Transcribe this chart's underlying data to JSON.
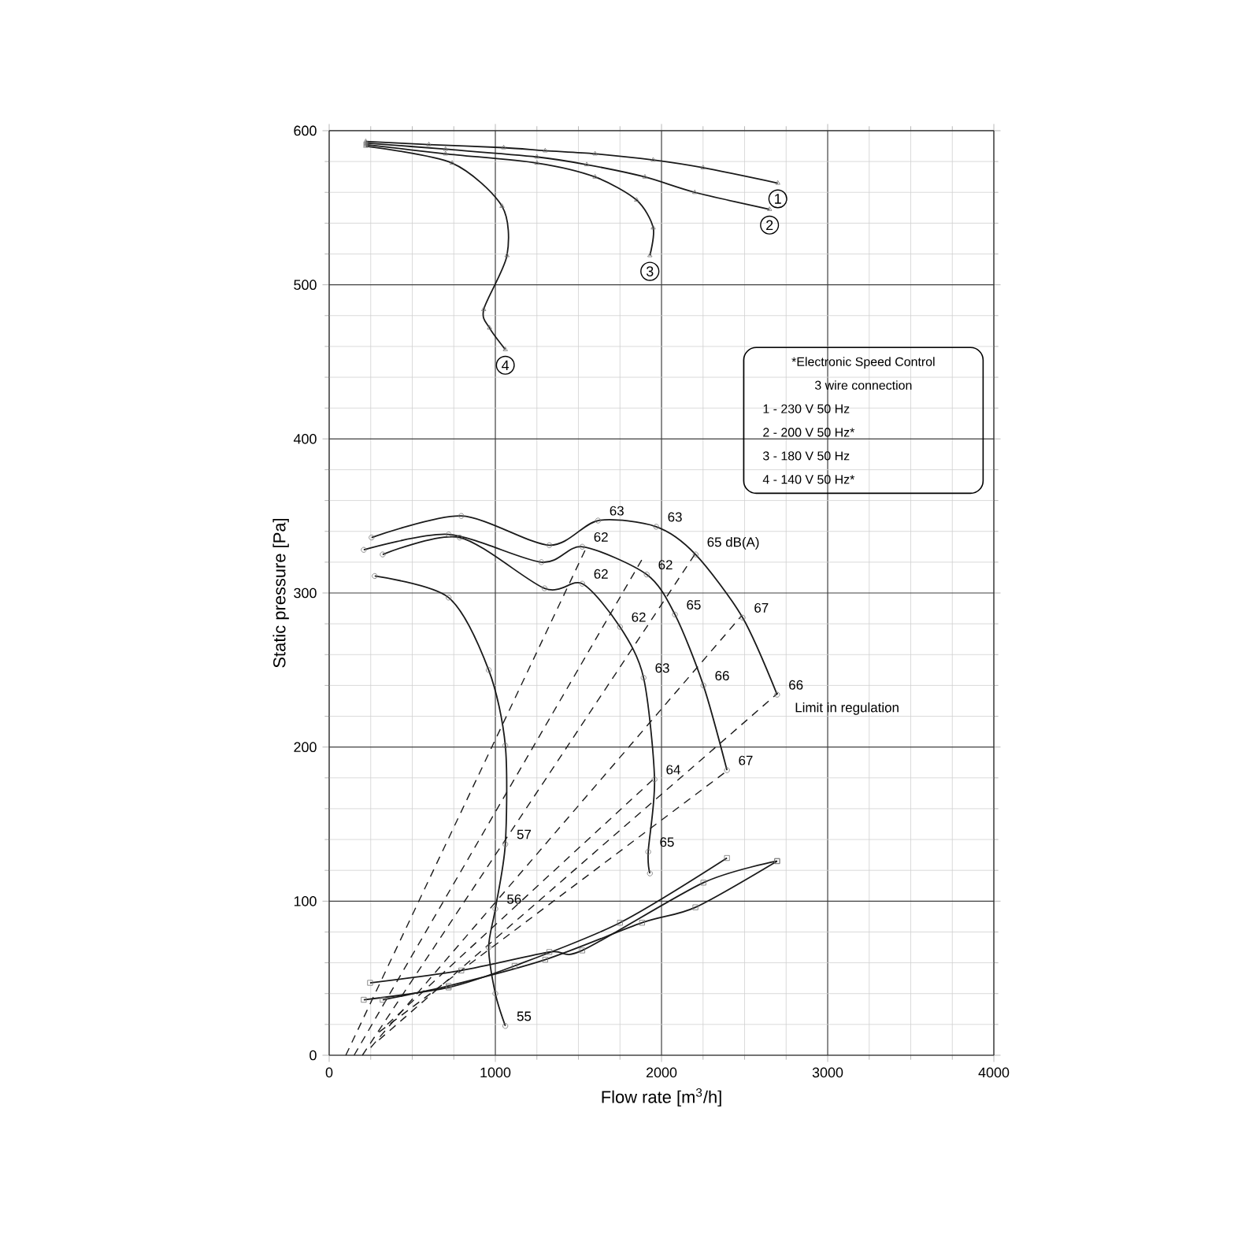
{
  "chart_data": {
    "type": "line",
    "xlabel": "Flow rate [m$^{3}$/h]",
    "ylabel": "Static pressure [Pa]",
    "xlim": [
      0,
      4000
    ],
    "ylim": [
      0,
      600
    ],
    "xticks": [
      0,
      1000,
      2000,
      3000,
      4000
    ],
    "yticks": [
      0,
      100,
      200,
      300,
      400,
      500,
      600
    ],
    "grid": true,
    "series": [
      {
        "name": "1",
        "color": "#1a1a1a",
        "marker": "triangle",
        "x": [
          220,
          600,
          1050,
          1300,
          1600,
          1950,
          2250,
          2700
        ],
        "values": [
          593,
          591,
          589,
          587,
          585,
          581,
          576,
          566
        ]
      },
      {
        "name": "2",
        "color": "#1a1a1a",
        "marker": "triangle",
        "x": [
          220,
          700,
          1250,
          1550,
          1900,
          2200,
          2650
        ],
        "values": [
          592,
          588,
          583,
          578,
          570,
          560,
          549
        ]
      },
      {
        "name": "3",
        "color": "#1a1a1a",
        "marker": "triangle",
        "x": [
          220,
          700,
          1250,
          1600,
          1850,
          1950,
          1930
        ],
        "values": [
          591,
          585,
          579,
          570,
          555,
          537,
          519
        ]
      },
      {
        "name": "4",
        "color": "#1a1a1a",
        "marker": "triangle",
        "x": [
          220,
          740,
          1040,
          1070,
          930,
          965,
          1060
        ],
        "values": [
          590,
          579,
          551,
          519,
          484,
          472,
          458
        ]
      },
      {
        "color": "#1a1a1a",
        "marker": "circle",
        "x": [
          255,
          795,
          1325,
          1618,
          1968,
          2205,
          2488,
          2696
        ],
        "values": [
          336,
          350,
          331,
          347,
          343,
          325,
          284,
          234
        ]
      },
      {
        "color": "#1a1a1a",
        "marker": "circle",
        "x": [
          208,
          719,
          1277,
          1523,
          1911,
          2081,
          2252,
          2394
        ],
        "values": [
          328,
          338,
          320,
          330,
          312,
          286,
          240,
          185
        ]
      },
      {
        "color": "#1a1a1a",
        "marker": "circle",
        "x": [
          322,
          785,
          1296,
          1523,
          1750,
          1892,
          1958,
          1920,
          1930
        ],
        "values": [
          325,
          336,
          303,
          306,
          278,
          245,
          179,
          132,
          118
        ]
      },
      {
        "color": "#1a1a1a",
        "marker": "circle",
        "x": [
          274,
          719,
          960,
          1060,
          1060,
          1000,
          960,
          1000,
          1060
        ],
        "values": [
          311,
          297,
          250,
          201,
          137,
          95,
          70,
          40,
          19
        ]
      },
      {
        "color": "#1a1a1a",
        "marker": "square",
        "x": [
          246,
          795,
          1325,
          1523,
          2252,
          2696
        ],
        "values": [
          47,
          55,
          67,
          68,
          112,
          126
        ]
      },
      {
        "color": "#1a1a1a",
        "marker": "square",
        "x": [
          208,
          719,
          1116,
          1750,
          2394
        ],
        "values": [
          36,
          44,
          58,
          86,
          128
        ]
      },
      {
        "color": "#1a1a1a",
        "marker": "square",
        "x": [
          322,
          719,
          1300,
          1883,
          2204,
          2696
        ],
        "values": [
          36,
          45,
          62,
          86,
          96,
          126
        ]
      },
      {
        "color": "#1a1a1a",
        "marker": "none",
        "line_style": "dashed",
        "x": [
          100,
          1550
        ],
        "values": [
          0,
          330
        ]
      },
      {
        "color": "#1a1a1a",
        "marker": "none",
        "line_style": "dashed",
        "x": [
          150,
          1900
        ],
        "values": [
          0,
          325
        ]
      },
      {
        "color": "#1a1a1a",
        "marker": "none",
        "line_style": "dashed",
        "x": [
          200,
          2200
        ],
        "values": [
          0,
          325
        ]
      },
      {
        "color": "#1a1a1a",
        "marker": "none",
        "line_style": "dashed",
        "x": [
          250,
          2480
        ],
        "values": [
          5,
          285
        ]
      },
      {
        "color": "#1a1a1a",
        "marker": "none",
        "line_style": "dashed",
        "x": [
          300,
          2700
        ],
        "values": [
          10,
          235
        ]
      },
      {
        "color": "#1a1a1a",
        "marker": "none",
        "line_style": "dashed",
        "x": [
          300,
          2400
        ],
        "values": [
          15,
          185
        ]
      },
      {
        "color": "#1a1a1a",
        "marker": "none",
        "line_style": "dashed",
        "x": [
          350,
          1960
        ],
        "values": [
          20,
          180
        ]
      }
    ],
    "annotations": [
      "*Electronic Speed Control",
      "3 wire connection",
      "1 - 230 V 50 Hz",
      "2 - 200 V 50 Hz*",
      "3 - 180 V 50 Hz",
      "4 - 140 V 50 Hz*",
      {
        "text": "63",
        "x": 1618,
        "y": 347
      },
      {
        "text": "63",
        "x": 1968,
        "y": 343
      },
      {
        "text": "65 dB(A)",
        "x": 2205,
        "y": 325
      },
      {
        "text": "62",
        "x": 1523,
        "y": 330
      },
      {
        "text": "62",
        "x": 1911,
        "y": 312
      },
      {
        "text": "62",
        "x": 1523,
        "y": 306
      },
      {
        "text": "65",
        "x": 2081,
        "y": 286
      },
      {
        "text": "67",
        "x": 2488,
        "y": 284
      },
      {
        "text": "62",
        "x": 1750,
        "y": 278
      },
      {
        "text": "63",
        "x": 1892,
        "y": 245
      },
      {
        "text": "66",
        "x": 2252,
        "y": 240
      },
      {
        "text": "66",
        "x": 2696,
        "y": 234
      },
      {
        "text": "67",
        "x": 2394,
        "y": 185
      },
      {
        "text": "64",
        "x": 1958,
        "y": 179
      },
      {
        "text": "57",
        "x": 1060,
        "y": 137
      },
      {
        "text": "65",
        "x": 1920,
        "y": 132
      },
      {
        "text": "56",
        "x": 1000,
        "y": 95
      },
      {
        "text": "55",
        "x": 1060,
        "y": 19
      },
      {
        "text": "Limit in regulation",
        "x": 2696,
        "y": 234
      }
    ]
  }
}
